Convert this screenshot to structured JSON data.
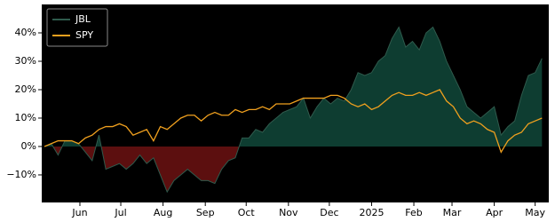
{
  "chart_data": {
    "type": "area_line",
    "x": [
      0,
      5,
      10,
      15,
      20,
      25,
      30,
      35,
      40,
      45,
      50,
      55,
      60,
      65,
      70,
      75,
      80,
      85,
      90,
      95,
      100,
      105,
      110,
      115,
      120,
      125,
      130,
      135,
      140,
      145,
      150,
      155,
      160,
      165,
      170,
      175,
      180,
      185,
      190,
      195,
      200,
      205,
      210,
      215,
      220,
      225,
      230,
      235,
      240,
      245,
      250,
      255,
      260,
      265,
      270,
      275,
      280,
      285,
      290,
      295,
      300,
      305,
      310,
      315,
      320,
      325,
      330,
      335,
      340,
      345,
      350,
      355,
      360,
      365
    ],
    "series": [
      {
        "name": "JBL",
        "color": "#0e3d31",
        "line_color": "#2f5a4c",
        "negative_color": "#5c0f0f",
        "values": [
          0,
          1,
          -3,
          2,
          2,
          1,
          -2,
          -5,
          4,
          -8,
          -7,
          -6,
          -8,
          -6,
          -3,
          -6,
          -4,
          -10,
          -16,
          -12,
          -10,
          -8,
          -10,
          -12,
          -12,
          -13,
          -8,
          -5,
          -4,
          3,
          3,
          6,
          5,
          8,
          10,
          12,
          13,
          14,
          17,
          10,
          14,
          17,
          15,
          17,
          16,
          20,
          26,
          25,
          26,
          30,
          32,
          38,
          42,
          35,
          37,
          34,
          40,
          42,
          37,
          30,
          25,
          20,
          14,
          12,
          10,
          12,
          14,
          4,
          7,
          9,
          18,
          25,
          26,
          31
        ]
      },
      {
        "name": "SPY",
        "color": "#f0a01e",
        "values": [
          0,
          1,
          2,
          2,
          2,
          1,
          3,
          4,
          6,
          7,
          7,
          8,
          7,
          4,
          5,
          6,
          2,
          7,
          6,
          8,
          10,
          11,
          11,
          9,
          11,
          12,
          11,
          11,
          13,
          12,
          13,
          13,
          14,
          13,
          15,
          15,
          15,
          16,
          17,
          17,
          17,
          17,
          18,
          18,
          17,
          15,
          14,
          15,
          13,
          14,
          16,
          18,
          19,
          18,
          18,
          19,
          18,
          19,
          20,
          16,
          14,
          10,
          8,
          9,
          8,
          6,
          5,
          -2,
          2,
          4,
          5,
          8,
          9,
          10
        ]
      }
    ],
    "xlim": [
      -2,
      370
    ],
    "xticks": [
      {
        "value": 26,
        "label": "Jun"
      },
      {
        "value": 56,
        "label": "Jul"
      },
      {
        "value": 87,
        "label": "Aug"
      },
      {
        "value": 118,
        "label": "Sep"
      },
      {
        "value": 148,
        "label": "Oct"
      },
      {
        "value": 179,
        "label": "Nov"
      },
      {
        "value": 209,
        "label": "Dec"
      },
      {
        "value": 240,
        "label": "2025"
      },
      {
        "value": 271,
        "label": "Feb"
      },
      {
        "value": 299,
        "label": "Mar"
      },
      {
        "value": 330,
        "label": "Apr"
      },
      {
        "value": 360,
        "label": "May"
      }
    ],
    "ylim": [
      -19.7,
      50
    ],
    "yticks": [
      {
        "value": -10,
        "label": "−10%"
      },
      {
        "value": 0,
        "label": "0%"
      },
      {
        "value": 10,
        "label": "10%"
      },
      {
        "value": 20,
        "label": "20%"
      },
      {
        "value": 30,
        "label": "30%"
      },
      {
        "value": 40,
        "label": "40%"
      }
    ],
    "legend": "upper left"
  }
}
